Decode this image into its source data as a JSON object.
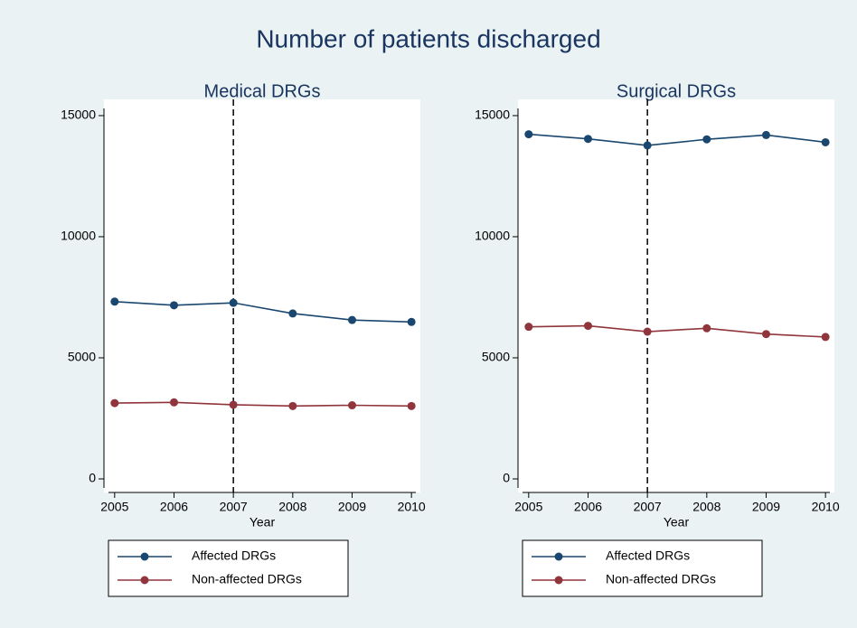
{
  "title": "Number of patients discharged",
  "chart_data": [
    {
      "type": "line",
      "title": "Medical DRGs",
      "xlabel": "Year",
      "x": [
        2005,
        2006,
        2007,
        2008,
        2009,
        2010
      ],
      "series": [
        {
          "name": "Affected DRGs",
          "color": "#1a476f",
          "values": [
            7320,
            7170,
            7270,
            6830,
            6560,
            6480
          ]
        },
        {
          "name": "Non-affected DRGs",
          "color": "#90353b",
          "values": [
            3130,
            3160,
            3060,
            3010,
            3040,
            3010
          ]
        }
      ],
      "xlim": [
        2004.82,
        2010.15
      ],
      "xticks": [
        2005,
        2006,
        2007,
        2008,
        2009,
        2010
      ],
      "ylim": [
        -560,
        15670
      ],
      "yticks": [
        0,
        5000,
        10000,
        15000
      ],
      "vline": 2007,
      "legend": "bottom"
    },
    {
      "type": "line",
      "title": "Surgical DRGs",
      "xlabel": "Year",
      "x": [
        2005,
        2006,
        2007,
        2008,
        2009,
        2010
      ],
      "series": [
        {
          "name": "Affected DRGs",
          "color": "#1a476f",
          "values": [
            14230,
            14040,
            13770,
            14020,
            14200,
            13900
          ]
        },
        {
          "name": "Non-affected DRGs",
          "color": "#90353b",
          "values": [
            6280,
            6320,
            6080,
            6220,
            5980,
            5860
          ]
        }
      ],
      "xlim": [
        2004.82,
        2010.15
      ],
      "xticks": [
        2005,
        2006,
        2007,
        2008,
        2009,
        2010
      ],
      "ylim": [
        -560,
        15670
      ],
      "yticks": [
        0,
        5000,
        10000,
        15000
      ],
      "vline": 2007,
      "legend": "bottom"
    }
  ]
}
